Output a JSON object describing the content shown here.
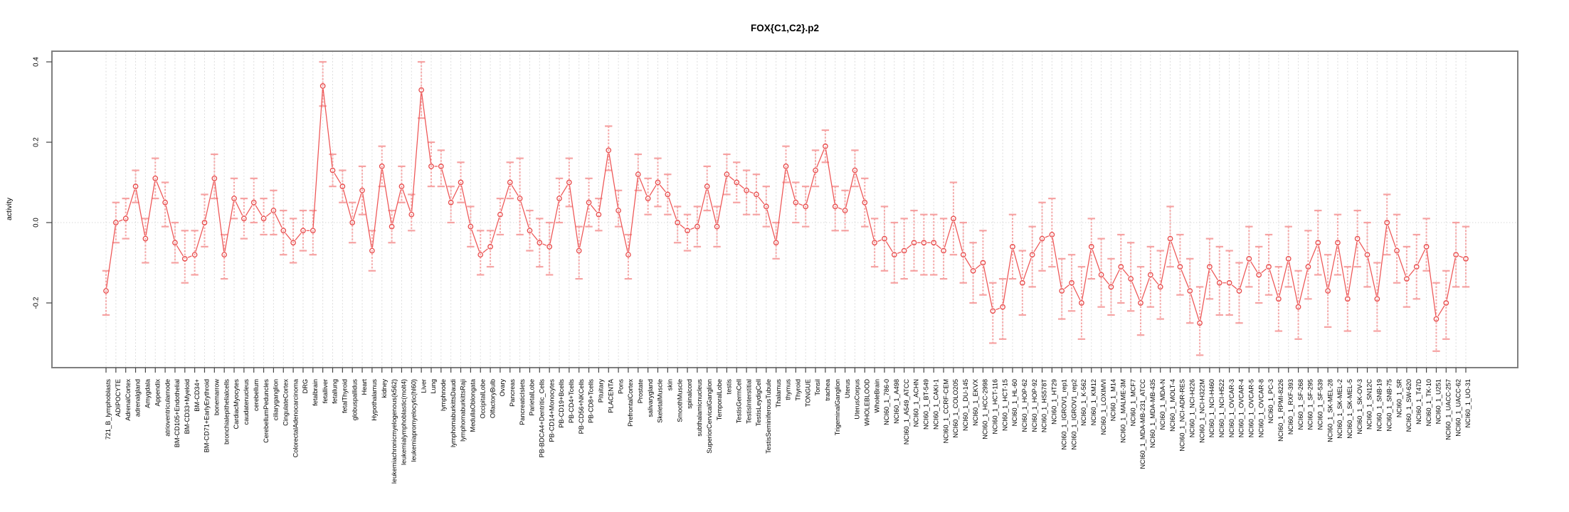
{
  "title": "FOX{C1,C2}.p2",
  "colors": {
    "series": "#ee5555",
    "errorbar": "#f59e9e",
    "point_stroke": "#e84a4a",
    "grid": "#dcdcdc",
    "zero_line": "#d6d6d6",
    "box": "#7f7f7f",
    "tick": "#444444",
    "text": "#000000",
    "background": "#ffffff"
  },
  "chart_data": {
    "type": "line",
    "subtype": "error-bar point plot (plotCI style)",
    "title": "FOX{C1,C2}.p2",
    "xlabel": "",
    "ylabel": "activity",
    "ylim": [
      -0.361,
      0.4265
    ],
    "yticks": [
      -0.2,
      0.0,
      0.2,
      0.4
    ],
    "ytick_labels": [
      "-0.2",
      "0.0",
      "0.2",
      "0.4"
    ],
    "grid": "vertical dashed gridline at every category; dotted horizontal line at y=0",
    "legend_position": "none",
    "x_label_rotation": -90,
    "categories": [
      "721_B_lymphoblasts",
      "ADIPOCYTE",
      "AdrenalCortex",
      "adrenalgland",
      "Amygdala",
      "Appendix",
      "atrioventricularnode",
      "BM-CD105+Endothelial",
      "BM-CD33+Myeloid",
      "BM-CD34+",
      "BM-CD71+EarlyErythroid",
      "bonemarrow",
      "bronchialepithelialcells",
      "CardiacMyocytes",
      "caudatenucleus",
      "cerebellum",
      "CerebellumPeduncles",
      "ciliaryganglion",
      "CingulateCortex",
      "ColorectalAdenocarcinoma",
      "DRG",
      "fetalbrain",
      "fetalliver",
      "fetallung",
      "fetalThyroid",
      "globuspallidus",
      "Heart",
      "Hypothalamus",
      "kidney",
      "leukemiachronicmyelogenous(k562)",
      "leukemialymphoblastic(molt4)",
      "leukemiapromyelocytic(hl60)",
      "Liver",
      "Lung",
      "lymphnode",
      "lymphomaburkittsDaudi",
      "lymphomaburkittsRaji",
      "MedullaOblongata",
      "OccipitalLobe",
      "OlfactoryBulb",
      "Ovary",
      "Pancreas",
      "PancreaticIslets",
      "ParietalLobe",
      "PB-BDCA4+Dentritic_Cells",
      "PB-CD14+Monocytes",
      "PB-CD19+Bcells",
      "PB-CD4+Tcells",
      "PB-CD56+NKCells",
      "PB-CD8+Tcells",
      "Pituitary",
      "PLACENTA",
      "Pons",
      "PrefrontalCortex",
      "Prostate",
      "salivarygland",
      "SkeletalMuscle",
      "skin",
      "SmoothMuscle",
      "spinalcord",
      "subthalamicnucleus",
      "SuperiorCervicalGanglion",
      "TemporalLobe",
      "testis",
      "TestisGermCell",
      "TestisInterstitial",
      "TestisLeydigCell",
      "TestisSeminiferousTubule",
      "Thalamus",
      "thymus",
      "Thyroid",
      "TONGUE",
      "Tonsil",
      "trachea",
      "TrigeminalGanglion",
      "Uterus",
      "UterusCorpus",
      "WHOLEBLOOD",
      "WholeBrain",
      "NCI60_1_786-0",
      "NCI60_1_A498",
      "NCI60_1_A549_ATCC",
      "NCI60_1_ACHN",
      "NCI60_1_BT-549",
      "NCI60_1_CAKI-1",
      "NCI60_1_CCRF-CEM",
      "NCI60_1_COLO205",
      "NCI60_1_DU-145",
      "NCI60_1_EKVX",
      "NCI60_1_HCC-2998",
      "NCI60_1_HCT-116",
      "NCI60_1_HCT-15",
      "NCI60_1_HL-60",
      "NCI60_1_HOP-62",
      "NCI60_1_HOP-92",
      "NCI60_1_HS578T",
      "NCI60_1_HT29",
      "NCI60_1_IGROV1_rep1",
      "NCI60_1_IGROV1_rep2",
      "NCI60_1_K-562",
      "NCI60_1_KM12",
      "NCI60_1_LOXIMVI",
      "NCI60_1_M14",
      "NCI60_1_MALME-3M",
      "NCI60_1_MCF7",
      "NCI60_1_MDA-MB-231_ATCC",
      "NCI60_1_MDA-MB-435",
      "NCI60_1_MDA-N",
      "NCI60_1_MOLT-4",
      "NCI60_1_NCI-ADR-RES",
      "NCI60_1_NCI-H226",
      "NCI60_1_NCI-H322M",
      "NCI60_1_NCI-H460",
      "NCI60_1_NCI-H522",
      "NCI60_1_OVCAR-3",
      "NCI60_1_OVCAR-4",
      "NCI60_1_OVCAR-5",
      "NCI60_1_OVCAR-8",
      "NCI60_1_PC-3",
      "NCI60_1_RPMI-8226",
      "NCI60_1_RXF-393",
      "NCI60_1_SF-268",
      "NCI60_1_SF-295",
      "NCI60_1_SF-539",
      "NCI60_1_SK-MEL-28",
      "NCI60_1_SK-MEL-2",
      "NCI60_1_SK-MEL-5",
      "NCI60_1_SK-OV-3",
      "NCI60_1_SN12C",
      "NCI60_1_SNB-19",
      "NCI60_1_SNB-75",
      "NCI60_1_SR",
      "NCI60_1_SW-620",
      "NCI60_1_T47D",
      "NCI60_1_TK-10",
      "NCI60_1_U251",
      "NCI60_1_UACC-257",
      "NCI60_1_UACC-62",
      "NCI60_1_UO-31"
    ],
    "values": [
      -0.17,
      0.0,
      0.01,
      0.09,
      -0.04,
      0.11,
      0.05,
      -0.05,
      -0.09,
      -0.08,
      0.0,
      0.11,
      -0.08,
      0.06,
      0.01,
      0.05,
      0.01,
      0.03,
      -0.02,
      -0.05,
      -0.02,
      -0.02,
      0.34,
      0.13,
      0.09,
      0.0,
      0.08,
      -0.07,
      0.14,
      -0.01,
      0.09,
      0.02,
      0.33,
      0.14,
      0.14,
      0.05,
      0.1,
      -0.01,
      -0.08,
      -0.06,
      0.02,
      0.1,
      0.06,
      -0.02,
      -0.05,
      -0.06,
      0.06,
      0.1,
      -0.07,
      0.05,
      0.02,
      0.18,
      0.03,
      -0.08,
      0.12,
      0.06,
      0.1,
      0.07,
      0.0,
      -0.02,
      -0.01,
      0.09,
      -0.01,
      0.12,
      0.1,
      0.08,
      0.07,
      0.04,
      -0.05,
      0.14,
      0.05,
      0.04,
      0.13,
      0.19,
      0.04,
      0.03,
      0.13,
      0.05,
      -0.05,
      -0.04,
      -0.08,
      -0.07,
      -0.05,
      -0.05,
      -0.05,
      -0.07,
      0.01,
      -0.08,
      -0.12,
      -0.1,
      -0.22,
      -0.21,
      -0.06,
      -0.15,
      -0.08,
      -0.04,
      -0.03,
      -0.17,
      -0.15,
      -0.2,
      -0.06,
      -0.13,
      -0.16,
      -0.11,
      -0.14,
      -0.2,
      -0.13,
      -0.16,
      -0.04,
      -0.11,
      -0.17,
      -0.25,
      -0.11,
      -0.15,
      -0.15,
      -0.17,
      -0.09,
      -0.13,
      -0.11,
      -0.19,
      -0.09,
      -0.21,
      -0.11,
      -0.05,
      -0.17,
      -0.05,
      -0.19,
      -0.04,
      -0.08,
      -0.19,
      0.0,
      -0.07,
      -0.14,
      -0.11,
      -0.06,
      -0.24,
      -0.2,
      -0.08,
      -0.09
    ],
    "error_low": [
      -0.23,
      -0.05,
      -0.04,
      0.05,
      -0.1,
      0.06,
      -0.01,
      -0.1,
      -0.15,
      -0.13,
      -0.06,
      0.06,
      -0.14,
      0.01,
      -0.04,
      0.0,
      -0.03,
      -0.03,
      -0.08,
      -0.1,
      -0.07,
      -0.08,
      0.29,
      0.09,
      0.05,
      -0.05,
      0.02,
      -0.12,
      0.09,
      -0.05,
      0.05,
      -0.02,
      0.26,
      0.09,
      0.09,
      0.0,
      0.05,
      -0.06,
      -0.13,
      -0.11,
      -0.03,
      0.06,
      -0.03,
      -0.07,
      -0.11,
      -0.13,
      0.0,
      0.04,
      -0.14,
      -0.01,
      -0.02,
      0.13,
      -0.01,
      -0.14,
      0.08,
      0.02,
      0.04,
      0.02,
      -0.05,
      -0.07,
      -0.06,
      0.03,
      -0.06,
      0.07,
      0.05,
      0.02,
      0.02,
      -0.01,
      -0.09,
      0.1,
      0.0,
      -0.01,
      0.09,
      0.15,
      -0.02,
      -0.02,
      0.09,
      -0.01,
      -0.11,
      -0.12,
      -0.15,
      -0.14,
      -0.12,
      -0.13,
      -0.13,
      -0.14,
      -0.08,
      -0.15,
      -0.2,
      -0.18,
      -0.3,
      -0.29,
      -0.14,
      -0.23,
      -0.16,
      -0.12,
      -0.11,
      -0.24,
      -0.22,
      -0.29,
      -0.14,
      -0.21,
      -0.23,
      -0.2,
      -0.22,
      -0.28,
      -0.21,
      -0.24,
      -0.11,
      -0.18,
      -0.25,
      -0.33,
      -0.19,
      -0.23,
      -0.23,
      -0.25,
      -0.16,
      -0.2,
      -0.18,
      -0.27,
      -0.16,
      -0.29,
      -0.19,
      -0.13,
      -0.26,
      -0.13,
      -0.27,
      -0.11,
      -0.16,
      -0.27,
      -0.08,
      -0.15,
      -0.21,
      -0.19,
      -0.12,
      -0.32,
      -0.29,
      -0.16,
      -0.16
    ],
    "error_high": [
      -0.12,
      0.05,
      0.06,
      0.13,
      0.01,
      0.16,
      0.1,
      0.0,
      -0.02,
      -0.02,
      0.07,
      0.17,
      -0.03,
      0.11,
      0.06,
      0.11,
      0.06,
      0.08,
      0.03,
      0.01,
      0.03,
      0.03,
      0.4,
      0.17,
      0.13,
      0.05,
      0.14,
      -0.02,
      0.19,
      0.03,
      0.14,
      0.07,
      0.4,
      0.2,
      0.18,
      0.09,
      0.15,
      0.04,
      -0.02,
      -0.02,
      0.06,
      0.15,
      0.16,
      0.03,
      0.01,
      0.0,
      0.11,
      0.16,
      -0.01,
      0.11,
      0.06,
      0.24,
      0.08,
      -0.03,
      0.17,
      0.11,
      0.16,
      0.12,
      0.04,
      0.02,
      0.04,
      0.14,
      0.04,
      0.17,
      0.15,
      0.13,
      0.12,
      0.09,
      0.0,
      0.19,
      0.1,
      0.09,
      0.18,
      0.23,
      0.09,
      0.08,
      0.18,
      0.11,
      0.01,
      0.04,
      0.0,
      0.01,
      0.03,
      0.02,
      0.02,
      0.01,
      0.1,
      0.0,
      -0.05,
      -0.02,
      -0.15,
      -0.14,
      0.02,
      -0.07,
      -0.01,
      0.05,
      0.06,
      -0.09,
      -0.08,
      -0.11,
      0.01,
      -0.04,
      -0.09,
      -0.03,
      -0.05,
      -0.11,
      -0.06,
      -0.07,
      0.04,
      -0.03,
      -0.09,
      -0.16,
      -0.04,
      -0.06,
      -0.07,
      -0.1,
      -0.01,
      -0.06,
      -0.03,
      -0.11,
      -0.01,
      -0.12,
      -0.02,
      0.03,
      -0.08,
      0.02,
      -0.11,
      0.03,
      0.0,
      -0.1,
      0.07,
      0.02,
      -0.06,
      -0.03,
      0.01,
      -0.15,
      -0.12,
      0.0,
      -0.01
    ]
  }
}
